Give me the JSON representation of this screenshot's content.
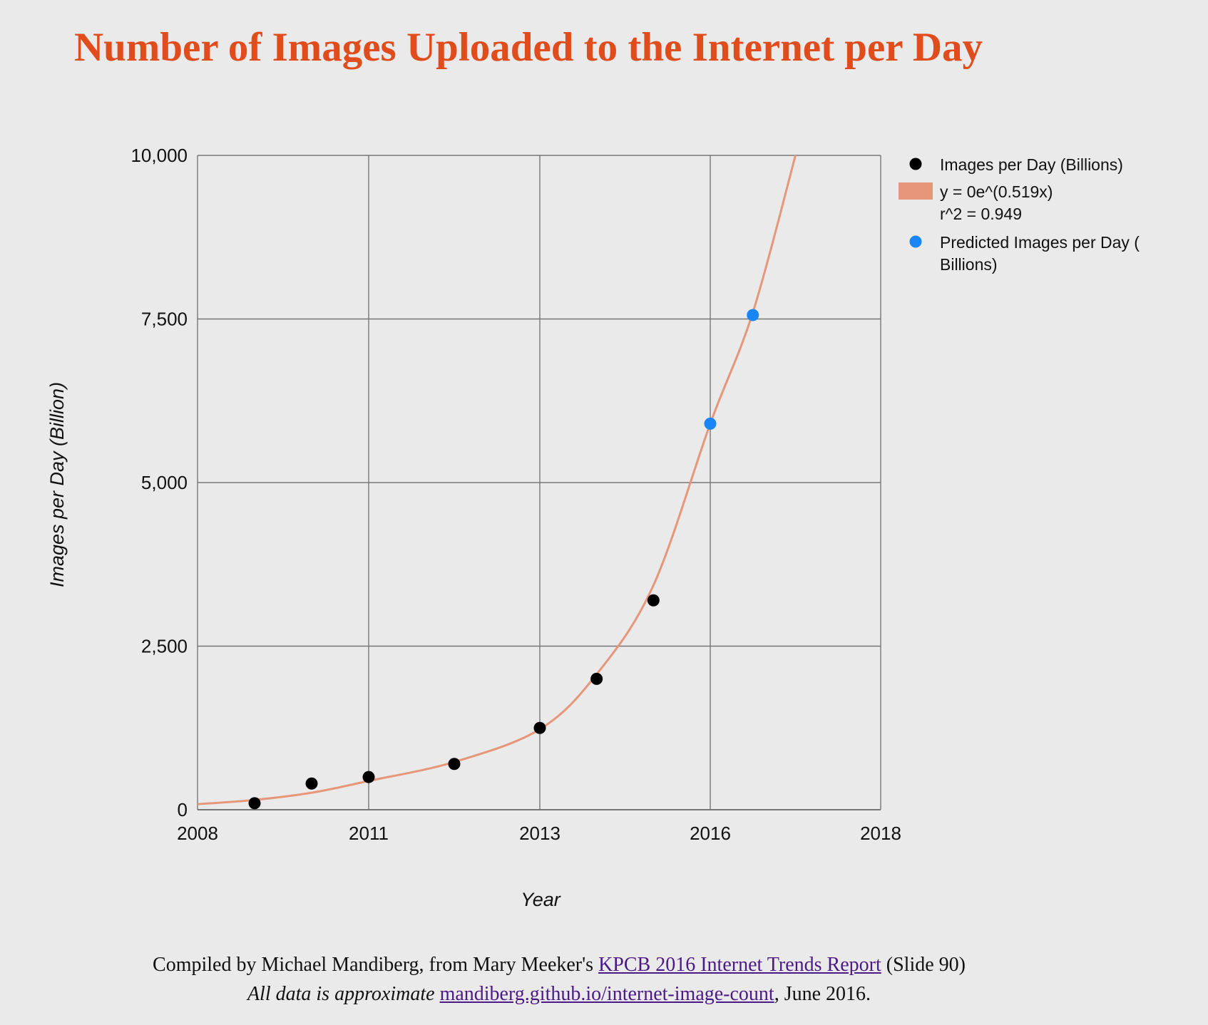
{
  "page": {
    "title": "Number of Images Uploaded to the Internet per Day",
    "footer": {
      "line1_prefix": "Compiled by Michael Mandiberg, from Mary Meeker's",
      "line1_link": "KPCB 2016 Internet Trends Report",
      "line1_suffix": "(Slide 90)",
      "line2_italic": "All data is approximate",
      "line2_link": "mandiberg.github.io/internet-image-count",
      "line2_suffix": ", June 2016."
    }
  },
  "colors": {
    "title": "#e04c1c",
    "background": "#ebeaea",
    "grid": "#777777",
    "trendline": "#e6977a",
    "actual_points": "#000000",
    "predicted_points": "#1a86f5",
    "link": "#4b1a86"
  },
  "chart_data": {
    "type": "scatter",
    "xlabel": "Year",
    "ylabel": "Images per Day (Billion)",
    "xlim": [
      2008,
      2018
    ],
    "ylim": [
      0,
      10000
    ],
    "x_ticks": [
      2008,
      2011,
      2013,
      2016,
      2018
    ],
    "x_tick_labels": [
      "2008",
      "2011",
      "2013",
      "2016",
      "2018"
    ],
    "y_ticks": [
      0,
      2500,
      5000,
      7500,
      10000
    ],
    "y_tick_labels": [
      "0",
      "2,500",
      "5,000",
      "7,500",
      "10,000"
    ],
    "grid": true,
    "legend_placement": "right",
    "legend": [
      {
        "label": "Images per Day (Billions)",
        "kind": "point",
        "color": "#000000"
      },
      {
        "label": "y = 0e^(0.519x)",
        "label2": "r^2 = 0.949",
        "kind": "line",
        "color": "#e6977a"
      },
      {
        "label": "Predicted Images per Day (",
        "label2": "Billions)",
        "kind": "point",
        "color": "#1a86f5"
      }
    ],
    "series": [
      {
        "name": "Images per Day (Billions)",
        "color": "#000000",
        "points": [
          {
            "x": 2009,
            "y": 100
          },
          {
            "x": 2010,
            "y": 400
          },
          {
            "x": 2011,
            "y": 500
          },
          {
            "x": 2012,
            "y": 700
          },
          {
            "x": 2013,
            "y": 1250
          },
          {
            "x": 2014,
            "y": 2000
          },
          {
            "x": 2015,
            "y": 3200
          }
        ]
      },
      {
        "name": "Predicted Images per Day (Billions)",
        "color": "#1a86f5",
        "points": [
          {
            "x": 2016,
            "y": 5900
          },
          {
            "x": 2016.5,
            "y": 7560
          }
        ]
      }
    ],
    "trendline": {
      "name": "y = 0e^(0.519x)",
      "r2_label": "r^2 = 0.949",
      "color": "#e6977a",
      "points": [
        {
          "x": 2008,
          "y": 85
        },
        {
          "x": 2009,
          "y": 150
        },
        {
          "x": 2010,
          "y": 260
        },
        {
          "x": 2011,
          "y": 440
        },
        {
          "x": 2012,
          "y": 730
        },
        {
          "x": 2013,
          "y": 1230
        },
        {
          "x": 2014,
          "y": 2070
        },
        {
          "x": 2015,
          "y": 3430
        },
        {
          "x": 2016,
          "y": 5900
        },
        {
          "x": 2016.5,
          "y": 7600
        },
        {
          "x": 2017,
          "y": 10000
        }
      ]
    }
  }
}
